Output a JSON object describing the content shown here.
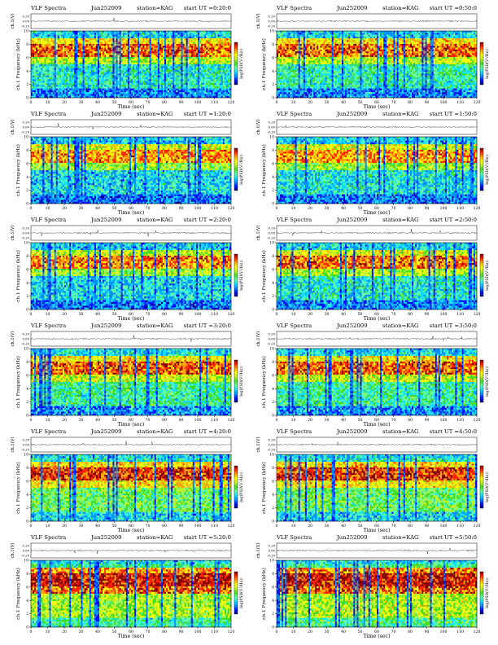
{
  "figure": {
    "colors": {
      "colormap": [
        "#000080",
        "#0010ff",
        "#0090ff",
        "#10e0ff",
        "#60ffa0",
        "#40dd20",
        "#c0f020",
        "#ffff00",
        "#ffa000",
        "#ff2000",
        "#800000"
      ]
    },
    "header": {
      "title": "VLF Spectra",
      "station": "station=KAG",
      "start_prefix": "start UT ="
    }
  },
  "chart_data": [
    {
      "type": "heatmap",
      "title": "VLF Spectra",
      "date": "Jun252009",
      "station": "station=KAG",
      "start_ut": "start UT =0:20:0",
      "waveform_label": "ch.1(V)",
      "waveform_ticks": [
        "0.20",
        "0.00",
        "-0.20"
      ],
      "xlabel": "Time (sec)",
      "ylabel": "ch.1 Frequency (kHz)",
      "colorbar_label": "log(PSD(V²/Hz))",
      "xlim": [
        0,
        120
      ],
      "ylim": [
        0,
        10
      ],
      "x_ticks": [
        "0",
        "10",
        "20",
        "30",
        "40",
        "50",
        "60",
        "70",
        "80",
        "90",
        "100",
        "110",
        "120"
      ],
      "y_ticks": [
        "0",
        "2",
        "4",
        "6",
        "8",
        "10"
      ],
      "bands": [
        [
          0,
          1.5,
          0.2
        ],
        [
          1.5,
          5,
          0.35
        ],
        [
          5,
          6.2,
          0.6
        ],
        [
          6.2,
          8,
          0.85
        ],
        [
          8,
          9,
          0.7
        ],
        [
          9,
          9.5,
          0.3
        ]
      ],
      "grid": true
    },
    {
      "type": "heatmap",
      "title": "VLF Spectra",
      "date": "Jun252009",
      "station": "station=KAG",
      "start_ut": "start UT =0:50:0",
      "waveform_label": "ch.1(V)",
      "waveform_ticks": [
        "0.20",
        "0.00",
        "-0.20"
      ],
      "xlabel": "Time (sec)",
      "ylabel": "ch.1 Frequency (kHz)",
      "colorbar_label": "log(PSD(V²/Hz))",
      "xlim": [
        0,
        120
      ],
      "ylim": [
        0,
        10
      ],
      "x_ticks": [
        "0",
        "10",
        "20",
        "30",
        "40",
        "50",
        "60",
        "70",
        "80",
        "90",
        "100",
        "110",
        "120"
      ],
      "y_ticks": [
        "0",
        "2",
        "4",
        "6",
        "8",
        "10"
      ],
      "bands": [
        [
          0,
          1.5,
          0.2
        ],
        [
          1.5,
          5,
          0.38
        ],
        [
          5,
          6.2,
          0.6
        ],
        [
          6.2,
          8,
          0.85
        ],
        [
          8,
          9,
          0.7
        ],
        [
          9,
          9.5,
          0.3
        ]
      ],
      "grid": true
    },
    {
      "type": "heatmap",
      "title": "VLF Spectra",
      "date": "Jun252009",
      "station": "station=KAG",
      "start_ut": "start UT =1:20:0",
      "waveform_label": "ch.1(V)",
      "waveform_ticks": [
        "0.20",
        "0.00",
        "-0.20"
      ],
      "xlabel": "Time (sec)",
      "ylabel": "ch.1 Frequency (kHz)",
      "colorbar_label": "log(PSD(V²/Hz))",
      "xlim": [
        0,
        120
      ],
      "ylim": [
        0,
        10
      ],
      "x_ticks": [
        "0",
        "10",
        "20",
        "30",
        "40",
        "50",
        "60",
        "70",
        "80",
        "90",
        "100",
        "110",
        "120"
      ],
      "y_ticks": [
        "0",
        "2",
        "4",
        "6",
        "8",
        "10"
      ],
      "bands": [
        [
          0,
          1.5,
          0.18
        ],
        [
          1.5,
          5,
          0.3
        ],
        [
          5,
          6.2,
          0.55
        ],
        [
          6.2,
          8,
          0.8
        ],
        [
          8,
          9,
          0.65
        ],
        [
          9,
          9.5,
          0.28
        ]
      ],
      "grid": true
    },
    {
      "type": "heatmap",
      "title": "VLF Spectra",
      "date": "Jun252009",
      "station": "station=KAG",
      "start_ut": "start UT =1:50:0",
      "waveform_label": "ch.1(V)",
      "waveform_ticks": [
        "0.20",
        "0.00",
        "-0.20"
      ],
      "xlabel": "Time (sec)",
      "ylabel": "ch.1 Frequency (kHz)",
      "colorbar_label": "log(PSD(V²/Hz))",
      "xlim": [
        0,
        120
      ],
      "ylim": [
        0,
        10
      ],
      "x_ticks": [
        "0",
        "10",
        "20",
        "30",
        "40",
        "50",
        "60",
        "70",
        "80",
        "90",
        "100",
        "110",
        "120"
      ],
      "y_ticks": [
        "0",
        "2",
        "4",
        "6",
        "8",
        "10"
      ],
      "bands": [
        [
          0,
          1.5,
          0.18
        ],
        [
          1.5,
          5,
          0.32
        ],
        [
          5,
          6.2,
          0.55
        ],
        [
          6.2,
          8,
          0.8
        ],
        [
          8,
          9,
          0.65
        ],
        [
          9,
          9.5,
          0.28
        ]
      ],
      "grid": true
    },
    {
      "type": "heatmap",
      "title": "VLF Spectra",
      "date": "Jun252009",
      "station": "station=KAG",
      "start_ut": "start UT =2:20:0",
      "waveform_label": "ch.1(V)",
      "waveform_ticks": [
        "0.20",
        "0.00",
        "-0.20"
      ],
      "xlabel": "Time (sec)",
      "ylabel": "ch.1 Frequency (kHz)",
      "colorbar_label": "log(PSD(V²/Hz))",
      "xlim": [
        0,
        120
      ],
      "ylim": [
        0,
        10
      ],
      "x_ticks": [
        "0",
        "10",
        "20",
        "30",
        "40",
        "50",
        "60",
        "70",
        "80",
        "90",
        "100",
        "110",
        "120"
      ],
      "y_ticks": [
        "0",
        "2",
        "4",
        "6",
        "8",
        "10"
      ],
      "bands": [
        [
          0,
          1.5,
          0.18
        ],
        [
          1.5,
          5,
          0.3
        ],
        [
          5,
          6.2,
          0.55
        ],
        [
          6.2,
          8,
          0.82
        ],
        [
          8,
          9,
          0.62
        ],
        [
          9,
          9.5,
          0.28
        ]
      ],
      "grid": true
    },
    {
      "type": "heatmap",
      "title": "VLF Spectra",
      "date": "Jun252009",
      "station": "station=KAG",
      "start_ut": "start UT =2:50:0",
      "waveform_label": "ch.1(V)",
      "waveform_ticks": [
        "0.20",
        "0.00",
        "-0.20"
      ],
      "xlabel": "Time (sec)",
      "ylabel": "ch.1 Frequency (kHz)",
      "colorbar_label": "log(PSD(V²/Hz))",
      "xlim": [
        0,
        120
      ],
      "ylim": [
        0,
        10
      ],
      "x_ticks": [
        "0",
        "10",
        "20",
        "30",
        "40",
        "50",
        "60",
        "70",
        "80",
        "90",
        "100",
        "110",
        "120"
      ],
      "y_ticks": [
        "0",
        "2",
        "4",
        "6",
        "8",
        "10"
      ],
      "bands": [
        [
          0,
          1.5,
          0.2
        ],
        [
          1.5,
          5,
          0.35
        ],
        [
          5,
          6.2,
          0.58
        ],
        [
          6.2,
          8,
          0.84
        ],
        [
          8,
          9,
          0.64
        ],
        [
          9,
          9.5,
          0.3
        ]
      ],
      "grid": true
    },
    {
      "type": "heatmap",
      "title": "VLF Spectra",
      "date": "Jun252009",
      "station": "station=KAG",
      "start_ut": "start UT =3:20:0",
      "waveform_label": "ch.1(V)",
      "waveform_ticks": [
        "0.20",
        "0.00",
        "-0.20"
      ],
      "xlabel": "Time (sec)",
      "ylabel": "ch.1 Frequency (kHz)",
      "colorbar_label": "log(PSD(V²/Hz))",
      "xlim": [
        0,
        120
      ],
      "ylim": [
        0,
        10
      ],
      "x_ticks": [
        "0",
        "10",
        "20",
        "30",
        "40",
        "50",
        "60",
        "70",
        "80",
        "90",
        "100",
        "110",
        "120"
      ],
      "y_ticks": [
        "0",
        "2",
        "4",
        "6",
        "8",
        "10"
      ],
      "bands": [
        [
          0,
          1.5,
          0.22
        ],
        [
          1.5,
          5,
          0.4
        ],
        [
          5,
          6.2,
          0.62
        ],
        [
          6.2,
          8,
          0.86
        ],
        [
          8,
          9,
          0.7
        ],
        [
          9,
          9.5,
          0.32
        ]
      ],
      "grid": true
    },
    {
      "type": "heatmap",
      "title": "VLF Spectra",
      "date": "Jun252009",
      "station": "station=KAG",
      "start_ut": "start UT =3:50:0",
      "waveform_label": "ch.1(V)",
      "waveform_ticks": [
        "0.20",
        "0.00",
        "-0.20"
      ],
      "xlabel": "Time (sec)",
      "ylabel": "ch.1 Frequency (kHz)",
      "colorbar_label": "log(PSD(V²/Hz))",
      "xlim": [
        0,
        120
      ],
      "ylim": [
        0,
        10
      ],
      "x_ticks": [
        "0",
        "10",
        "20",
        "30",
        "40",
        "50",
        "60",
        "70",
        "80",
        "90",
        "100",
        "110",
        "120"
      ],
      "y_ticks": [
        "0",
        "2",
        "4",
        "6",
        "8",
        "10"
      ],
      "bands": [
        [
          0,
          1.5,
          0.22
        ],
        [
          1.5,
          5,
          0.4
        ],
        [
          5,
          6.2,
          0.62
        ],
        [
          6.2,
          8,
          0.86
        ],
        [
          8,
          9,
          0.7
        ],
        [
          9,
          9.5,
          0.32
        ]
      ],
      "grid": true
    },
    {
      "type": "heatmap",
      "title": "VLF Spectra",
      "date": "Jun252009",
      "station": "station=KAG",
      "start_ut": "start UT =4:20:0",
      "waveform_label": "ch.1(V)",
      "waveform_ticks": [
        "0.20",
        "0.00",
        "-0.20"
      ],
      "xlabel": "Time (sec)",
      "ylabel": "ch.1 Frequency (kHz)",
      "colorbar_label": "log(PSD(V²/Hz))",
      "xlim": [
        0,
        120
      ],
      "ylim": [
        0,
        10
      ],
      "x_ticks": [
        "0",
        "10",
        "20",
        "30",
        "40",
        "50",
        "60",
        "70",
        "80",
        "90",
        "100",
        "110",
        "120"
      ],
      "y_ticks": [
        "0",
        "2",
        "4",
        "6",
        "8",
        "10"
      ],
      "bands": [
        [
          0,
          1.5,
          0.3
        ],
        [
          1.5,
          5,
          0.48
        ],
        [
          5,
          6.2,
          0.7
        ],
        [
          6.2,
          8,
          0.9
        ],
        [
          8,
          9,
          0.72
        ],
        [
          9,
          9.5,
          0.35
        ]
      ],
      "grid": true
    },
    {
      "type": "heatmap",
      "title": "VLF Spectra",
      "date": "Jun252009",
      "station": "station=KAG",
      "start_ut": "start UT =4:50:0",
      "waveform_label": "ch.1(V)",
      "waveform_ticks": [
        "0.20",
        "0.00",
        "-0.20"
      ],
      "xlabel": "Time (sec)",
      "ylabel": "ch.1 Frequency (kHz)",
      "colorbar_label": "log(PSD(V²/Hz))",
      "xlim": [
        0,
        120
      ],
      "ylim": [
        0,
        10
      ],
      "x_ticks": [
        "0",
        "10",
        "20",
        "30",
        "40",
        "50",
        "60",
        "70",
        "80",
        "90",
        "100",
        "110",
        "120"
      ],
      "y_ticks": [
        "0",
        "2",
        "4",
        "6",
        "8",
        "10"
      ],
      "bands": [
        [
          0,
          1.5,
          0.3
        ],
        [
          1.5,
          5,
          0.48
        ],
        [
          5,
          6.2,
          0.7
        ],
        [
          6.2,
          8,
          0.9
        ],
        [
          8,
          9,
          0.72
        ],
        [
          9,
          9.5,
          0.35
        ]
      ],
      "grid": true
    },
    {
      "type": "heatmap",
      "title": "VLF Spectra",
      "date": "Jun252009",
      "station": "station=KAG",
      "start_ut": "start UT =5:20:0",
      "waveform_label": "ch.1(V)",
      "waveform_ticks": [
        "0.20",
        "0.00",
        "-0.20"
      ],
      "xlabel": "Time (sec)",
      "ylabel": "ch.1 Frequency (kHz)",
      "colorbar_label": "log(PSD(V²/Hz))",
      "xlim": [
        0,
        120
      ],
      "ylim": [
        0,
        10
      ],
      "x_ticks": [
        "0",
        "10",
        "20",
        "30",
        "40",
        "50",
        "60",
        "70",
        "80",
        "90",
        "100",
        "110",
        "120"
      ],
      "y_ticks": [
        "0",
        "2",
        "4",
        "6",
        "8",
        "10"
      ],
      "bands": [
        [
          0,
          1.5,
          0.4
        ],
        [
          1.5,
          5,
          0.58
        ],
        [
          5,
          6.2,
          0.85
        ],
        [
          6.2,
          8,
          0.95
        ],
        [
          8,
          9,
          0.8
        ],
        [
          9,
          9.5,
          0.4
        ]
      ],
      "grid": true
    },
    {
      "type": "heatmap",
      "title": "VLF Spectra",
      "date": "Jun252009",
      "station": "station=KAG",
      "start_ut": "start UT =5:50:0",
      "waveform_label": "ch.1(V)",
      "waveform_ticks": [
        "0.20",
        "0.00",
        "-0.20"
      ],
      "xlabel": "Time (sec)",
      "ylabel": "ch.1 Frequency (kHz)",
      "colorbar_label": "log(PSD(V²/Hz))",
      "xlim": [
        0,
        120
      ],
      "ylim": [
        0,
        10
      ],
      "x_ticks": [
        "0",
        "10",
        "20",
        "30",
        "40",
        "50",
        "60",
        "70",
        "80",
        "90",
        "100",
        "110",
        "120"
      ],
      "y_ticks": [
        "0",
        "2",
        "4",
        "6",
        "8",
        "10"
      ],
      "bands": [
        [
          0,
          1.5,
          0.42
        ],
        [
          1.5,
          5,
          0.6
        ],
        [
          5,
          6.2,
          0.86
        ],
        [
          6.2,
          8,
          0.95
        ],
        [
          8,
          9,
          0.82
        ],
        [
          9,
          9.5,
          0.42
        ]
      ],
      "grid": true
    }
  ]
}
